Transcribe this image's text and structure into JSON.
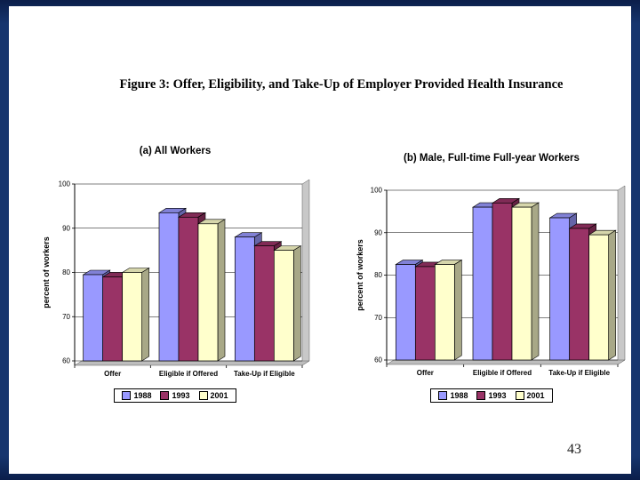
{
  "slide": {
    "title": "Figure 3: Offer, Eligibility, and Take-Up of Employer Provided Health Insurance",
    "page_number": "43"
  },
  "colors": {
    "series_1988": "#9999ff",
    "series_1993": "#993366",
    "series_2001": "#ffffcc",
    "plot_floor": "#bdbdbd",
    "frame_navy": "#16356e"
  },
  "chart_data": [
    {
      "type": "bar",
      "title": "(a) All Workers",
      "xlabel": "",
      "ylabel": "percent of workers",
      "ylim": [
        60,
        100
      ],
      "yticks": [
        60,
        70,
        80,
        90,
        100
      ],
      "grid": true,
      "legend_position": "bottom",
      "categories": [
        "Offer",
        "Eligible if Offered",
        "Take-Up if Eligible"
      ],
      "series": [
        {
          "name": "1988",
          "color": "#9999ff",
          "values": [
            79.5,
            93.5,
            88
          ]
        },
        {
          "name": "1993",
          "color": "#993366",
          "values": [
            79,
            92.5,
            86
          ]
        },
        {
          "name": "2001",
          "color": "#ffffcc",
          "values": [
            80,
            91,
            85
          ]
        }
      ]
    },
    {
      "type": "bar",
      "title": "(b) Male, Full-time Full-year Workers",
      "xlabel": "",
      "ylabel": "percent of workers",
      "ylim": [
        60,
        100
      ],
      "yticks": [
        60,
        70,
        80,
        90,
        100
      ],
      "grid": true,
      "legend_position": "bottom",
      "categories": [
        "Offer",
        "Eligible if Offered",
        "Take-Up if Eligible"
      ],
      "series": [
        {
          "name": "1988",
          "color": "#9999ff",
          "values": [
            82.5,
            96,
            93.5
          ]
        },
        {
          "name": "1993",
          "color": "#993366",
          "values": [
            82,
            97,
            91
          ]
        },
        {
          "name": "2001",
          "color": "#ffffcc",
          "values": [
            82.5,
            96,
            89.5
          ]
        }
      ]
    }
  ]
}
